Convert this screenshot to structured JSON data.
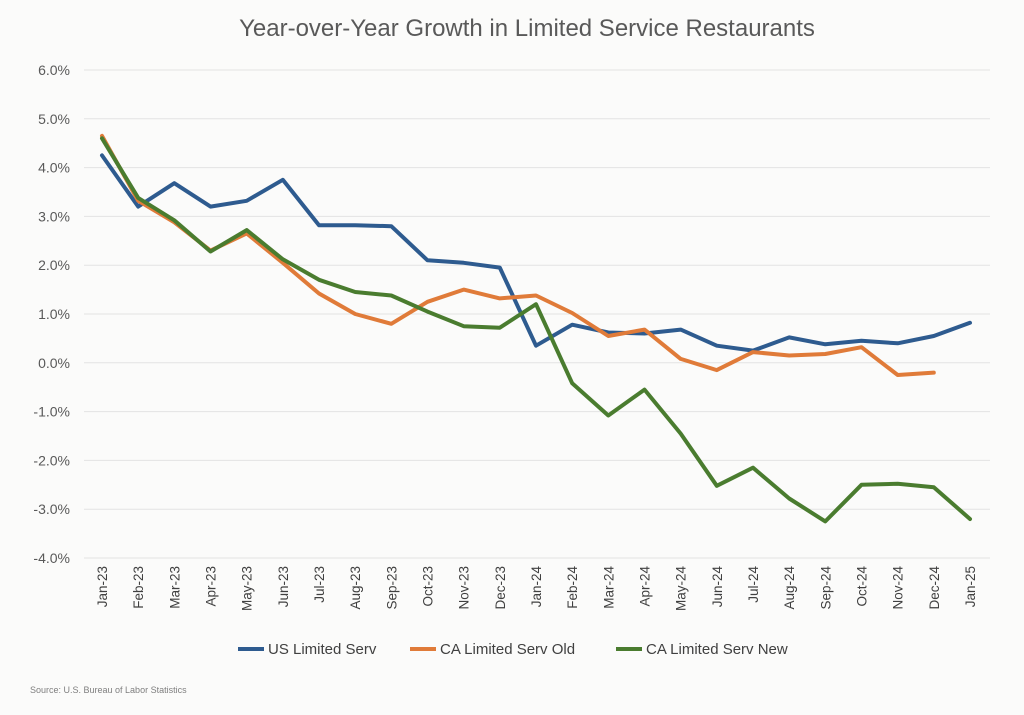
{
  "chart_data": {
    "type": "line",
    "title": "Year-over-Year Growth in Limited Service Restaurants",
    "categories": [
      "Jan-23",
      "Feb-23",
      "Mar-23",
      "Apr-23",
      "May-23",
      "Jun-23",
      "Jul-23",
      "Aug-23",
      "Sep-23",
      "Oct-23",
      "Nov-23",
      "Dec-23",
      "Jan-24",
      "Feb-24",
      "Mar-24",
      "Apr-24",
      "May-24",
      "Jun-24",
      "Jul-24",
      "Aug-24",
      "Sep-24",
      "Oct-24",
      "Nov-24",
      "Dec-24",
      "Jan-25"
    ],
    "yticks": [
      "6.0%",
      "5.0%",
      "4.0%",
      "3.0%",
      "2.0%",
      "1.0%",
      "0.0%",
      "-1.0%",
      "-2.0%",
      "-3.0%",
      "-4.0%"
    ],
    "ylim": [
      -4.0,
      6.0
    ],
    "y_unit": "%",
    "grid": true,
    "legend_position": "bottom",
    "series": [
      {
        "name": "US Limited Serv",
        "color": "#2e5b8f",
        "values": [
          4.25,
          3.2,
          3.68,
          3.2,
          3.32,
          3.75,
          2.82,
          2.82,
          2.8,
          2.1,
          2.05,
          1.95,
          0.35,
          0.78,
          0.62,
          0.6,
          0.68,
          0.35,
          0.25,
          0.52,
          0.38,
          0.45,
          0.4,
          0.55,
          0.82
        ]
      },
      {
        "name": "CA Limited Serv Old",
        "color": "#e07b39",
        "values": [
          4.65,
          3.32,
          2.88,
          2.3,
          2.65,
          2.05,
          1.42,
          1.0,
          0.8,
          1.25,
          1.5,
          1.32,
          1.38,
          1.02,
          0.55,
          0.68,
          0.08,
          -0.15,
          0.22,
          0.15,
          0.18,
          0.32,
          -0.25,
          -0.2,
          null
        ]
      },
      {
        "name": "CA Limited Serv New",
        "color": "#4a7c2f",
        "values": [
          4.6,
          3.38,
          2.92,
          2.28,
          2.72,
          2.12,
          1.7,
          1.45,
          1.38,
          1.05,
          0.75,
          0.72,
          1.2,
          -0.42,
          -1.08,
          -0.55,
          -1.45,
          -2.52,
          -2.15,
          -2.78,
          -3.25,
          -2.5,
          -2.48,
          -2.55,
          -3.2
        ]
      }
    ],
    "source": "Source: U.S. Bureau of Labor Statistics"
  }
}
